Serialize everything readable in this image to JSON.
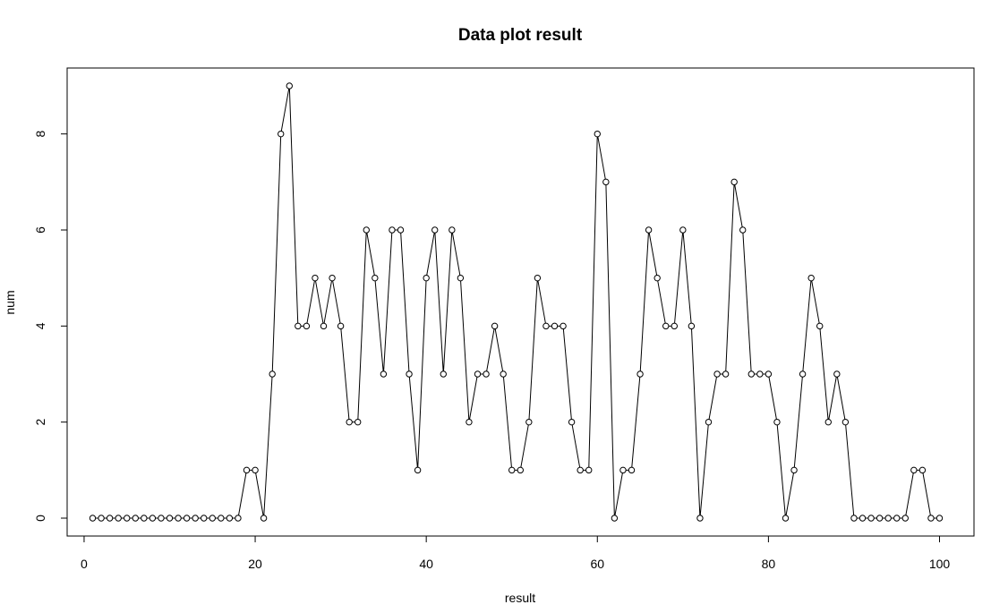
{
  "chart_data": {
    "type": "line",
    "title": "Data plot result",
    "xlabel": "result",
    "ylabel": "num",
    "xlim": [
      1,
      100
    ],
    "ylim": [
      0,
      9
    ],
    "xticks": [
      0,
      20,
      40,
      60,
      80,
      100
    ],
    "yticks": [
      0,
      2,
      4,
      6,
      8
    ],
    "grid": false,
    "markers": "open-circle",
    "line_color": "#000000",
    "x": [
      1,
      2,
      3,
      4,
      5,
      6,
      7,
      8,
      9,
      10,
      11,
      12,
      13,
      14,
      15,
      16,
      17,
      18,
      19,
      20,
      21,
      22,
      23,
      24,
      25,
      26,
      27,
      28,
      29,
      30,
      31,
      32,
      33,
      34,
      35,
      36,
      37,
      38,
      39,
      40,
      41,
      42,
      43,
      44,
      45,
      46,
      47,
      48,
      49,
      50,
      51,
      52,
      53,
      54,
      55,
      56,
      57,
      58,
      59,
      60,
      61,
      62,
      63,
      64,
      65,
      66,
      67,
      68,
      69,
      70,
      71,
      72,
      73,
      74,
      75,
      76,
      77,
      78,
      79,
      80,
      81,
      82,
      83,
      84,
      85,
      86,
      87,
      88,
      89,
      90,
      91,
      92,
      93,
      94,
      95,
      96,
      97,
      98,
      99,
      100
    ],
    "values": [
      0,
      0,
      0,
      0,
      0,
      0,
      0,
      0,
      0,
      0,
      0,
      0,
      0,
      0,
      0,
      0,
      0,
      0,
      1,
      1,
      0,
      3,
      8,
      9,
      4,
      4,
      5,
      4,
      5,
      4,
      2,
      2,
      6,
      5,
      3,
      6,
      6,
      3,
      1,
      5,
      6,
      3,
      6,
      5,
      2,
      3,
      3,
      4,
      3,
      1,
      1,
      2,
      5,
      4,
      4,
      4,
      2,
      1,
      1,
      8,
      7,
      0,
      1,
      1,
      3,
      6,
      5,
      4,
      4,
      6,
      4,
      0,
      2,
      3,
      3,
      7,
      6,
      3,
      3,
      3,
      2,
      0,
      1,
      3,
      5,
      4,
      2,
      3,
      2,
      0,
      0,
      0,
      0,
      0,
      0,
      0,
      1,
      1,
      0,
      0
    ]
  }
}
